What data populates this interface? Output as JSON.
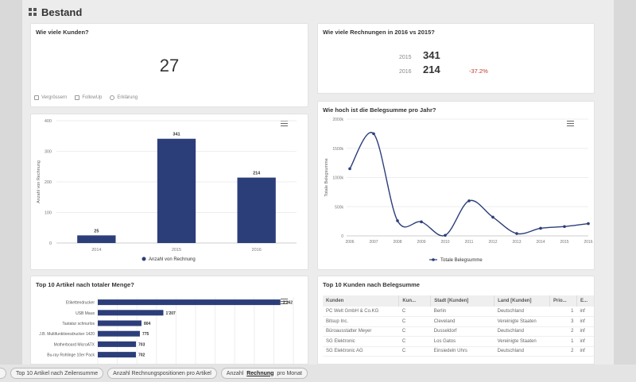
{
  "header": {
    "title": "Bestand",
    "icon": "dashboard-grid-icon"
  },
  "kpi": {
    "title": "Wie viele Kunden?",
    "value": "27",
    "links": [
      {
        "label": "Vergrössern",
        "icon": "expand-icon"
      },
      {
        "label": "FollowUp",
        "icon": "mail-icon"
      },
      {
        "label": "Erklärung",
        "icon": "help-icon"
      }
    ]
  },
  "comparison": {
    "title": "Wie viele Rechnungen in 2016 vs 2015?",
    "rows": [
      {
        "year": "2015",
        "value": "341",
        "delta": ""
      },
      {
        "year": "2016",
        "value": "214",
        "delta": "-37.2%"
      }
    ]
  },
  "bar_card": {
    "menu_icon": "hamburger-menu-icon"
  },
  "line_card": {
    "title": "Wie hoch ist die Belegsumme pro Jahr?",
    "menu_icon": "hamburger-menu-icon"
  },
  "articles_card": {
    "title": "Top 10 Artikel nach totaler Menge?"
  },
  "customers_card": {
    "title": "Top 10 Kunden nach Belegsumme",
    "columns": [
      "Kunden",
      "Kun...",
      "Stadt [Kunden]",
      "Land [Kunden]",
      "Prio...",
      "E..."
    ],
    "rows": [
      [
        "PC Welt GmbH & Co.KG",
        "C",
        "Berlin",
        "Deutschland",
        "1",
        "inf"
      ],
      [
        "Bitsup Inc.",
        "C",
        "Cleveland",
        "Vereinigte Staaten",
        "3",
        "inf"
      ],
      [
        "Büroausstatter Meyer",
        "C",
        "Dusseldorf",
        "Deutschland",
        "2",
        "inf"
      ],
      [
        "SG Elektronic",
        "C",
        "Los Gatos",
        "Vereinigte Staaten",
        "1",
        "inf"
      ],
      [
        "SG Elektronic AG",
        "C",
        "Einsiedeln Uhrs",
        "Deutschland",
        "2",
        "inf"
      ]
    ]
  },
  "bottom_tabs": [
    {
      "pre": "",
      "bold": "",
      "post": ""
    },
    {
      "pre": "Top 10 Artikel nach Zeilensumme",
      "bold": "",
      "post": ""
    },
    {
      "pre": "Anzahl Rechnungspositionen pro Artikel",
      "bold": "",
      "post": ""
    },
    {
      "pre": "Anzahl ",
      "bold": "Rechnung",
      "post": " pro Monat"
    }
  ],
  "colors": {
    "series": "#2c3e7a",
    "delta_negative": "#c0392b"
  },
  "chart_data": [
    {
      "type": "bar",
      "title": "",
      "categories": [
        "2014",
        "2015",
        "2016"
      ],
      "values": [
        25,
        341,
        214
      ],
      "ylabel": "Anzahl von Rechnung",
      "ylim": [
        0,
        400
      ],
      "yticks": [
        0,
        100,
        200,
        300,
        400
      ],
      "legend": "Anzahl von Rechnung"
    },
    {
      "type": "line",
      "title": "Wie hoch ist die Belegsumme pro Jahr?",
      "x": [
        "2006",
        "2007",
        "2008",
        "2009",
        "2010",
        "2011",
        "2012",
        "2013",
        "2014",
        "2015",
        "2016"
      ],
      "values": [
        1150000,
        1750000,
        260000,
        240000,
        10000,
        600000,
        320000,
        40000,
        130000,
        160000,
        210000
      ],
      "ylabel": "Totale Belegsumme",
      "ylim": [
        0,
        2000000
      ],
      "yticks": [
        0,
        500000,
        1000000,
        1500000,
        2000000
      ],
      "ytick_labels": [
        "0",
        "500k",
        "1000k",
        "1500k",
        "2000k"
      ],
      "legend": "Totale Belegsumme"
    },
    {
      "type": "bar",
      "orientation": "horizontal",
      "title": "Top 10 Artikel nach totaler Menge?",
      "categories": [
        "Etikettendrucker",
        "USB Maus",
        "Tastatur schnurlos",
        "J.B. Multifunktionsdrucker 1420",
        "Motherboard MicroATX",
        "Bu-ray Rohlinge 10er Pack"
      ],
      "values": [
        3362,
        1207,
        804,
        775,
        703,
        702
      ],
      "data_labels": [
        "3'362",
        "1'207",
        "804",
        "775",
        "703",
        "702"
      ],
      "xlim": [
        0,
        3600
      ]
    }
  ]
}
